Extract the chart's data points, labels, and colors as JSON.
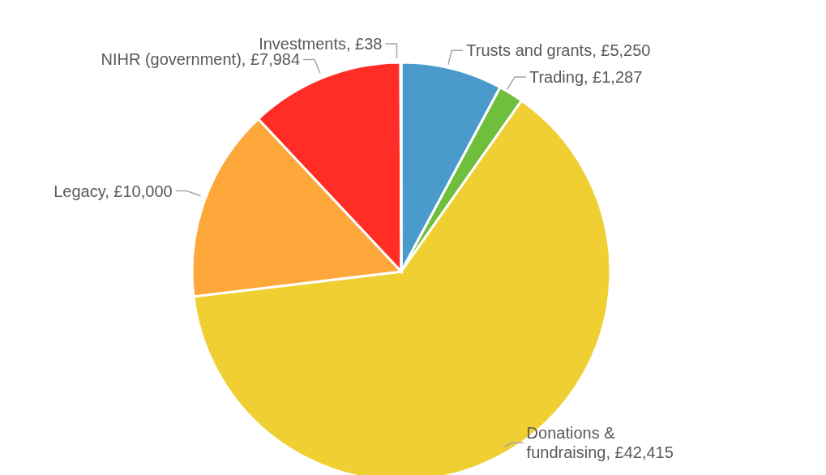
{
  "chart_data": {
    "type": "pie",
    "categories": [
      "Trusts and grants",
      "Trading",
      "Donations & fundraising",
      "Legacy",
      "NIHR (government)",
      "Investments"
    ],
    "values": [
      5250,
      1287,
      42415,
      10000,
      7984,
      38
    ],
    "value_labels": [
      "£5,250",
      "£1,287",
      "£42,415",
      "£10,000",
      "£7,984",
      "£38"
    ],
    "colors": [
      "#4a9bcb",
      "#6fbf3c",
      "#efcf31",
      "#fea73a",
      "#ff2d26",
      "#8fb3cc"
    ]
  }
}
